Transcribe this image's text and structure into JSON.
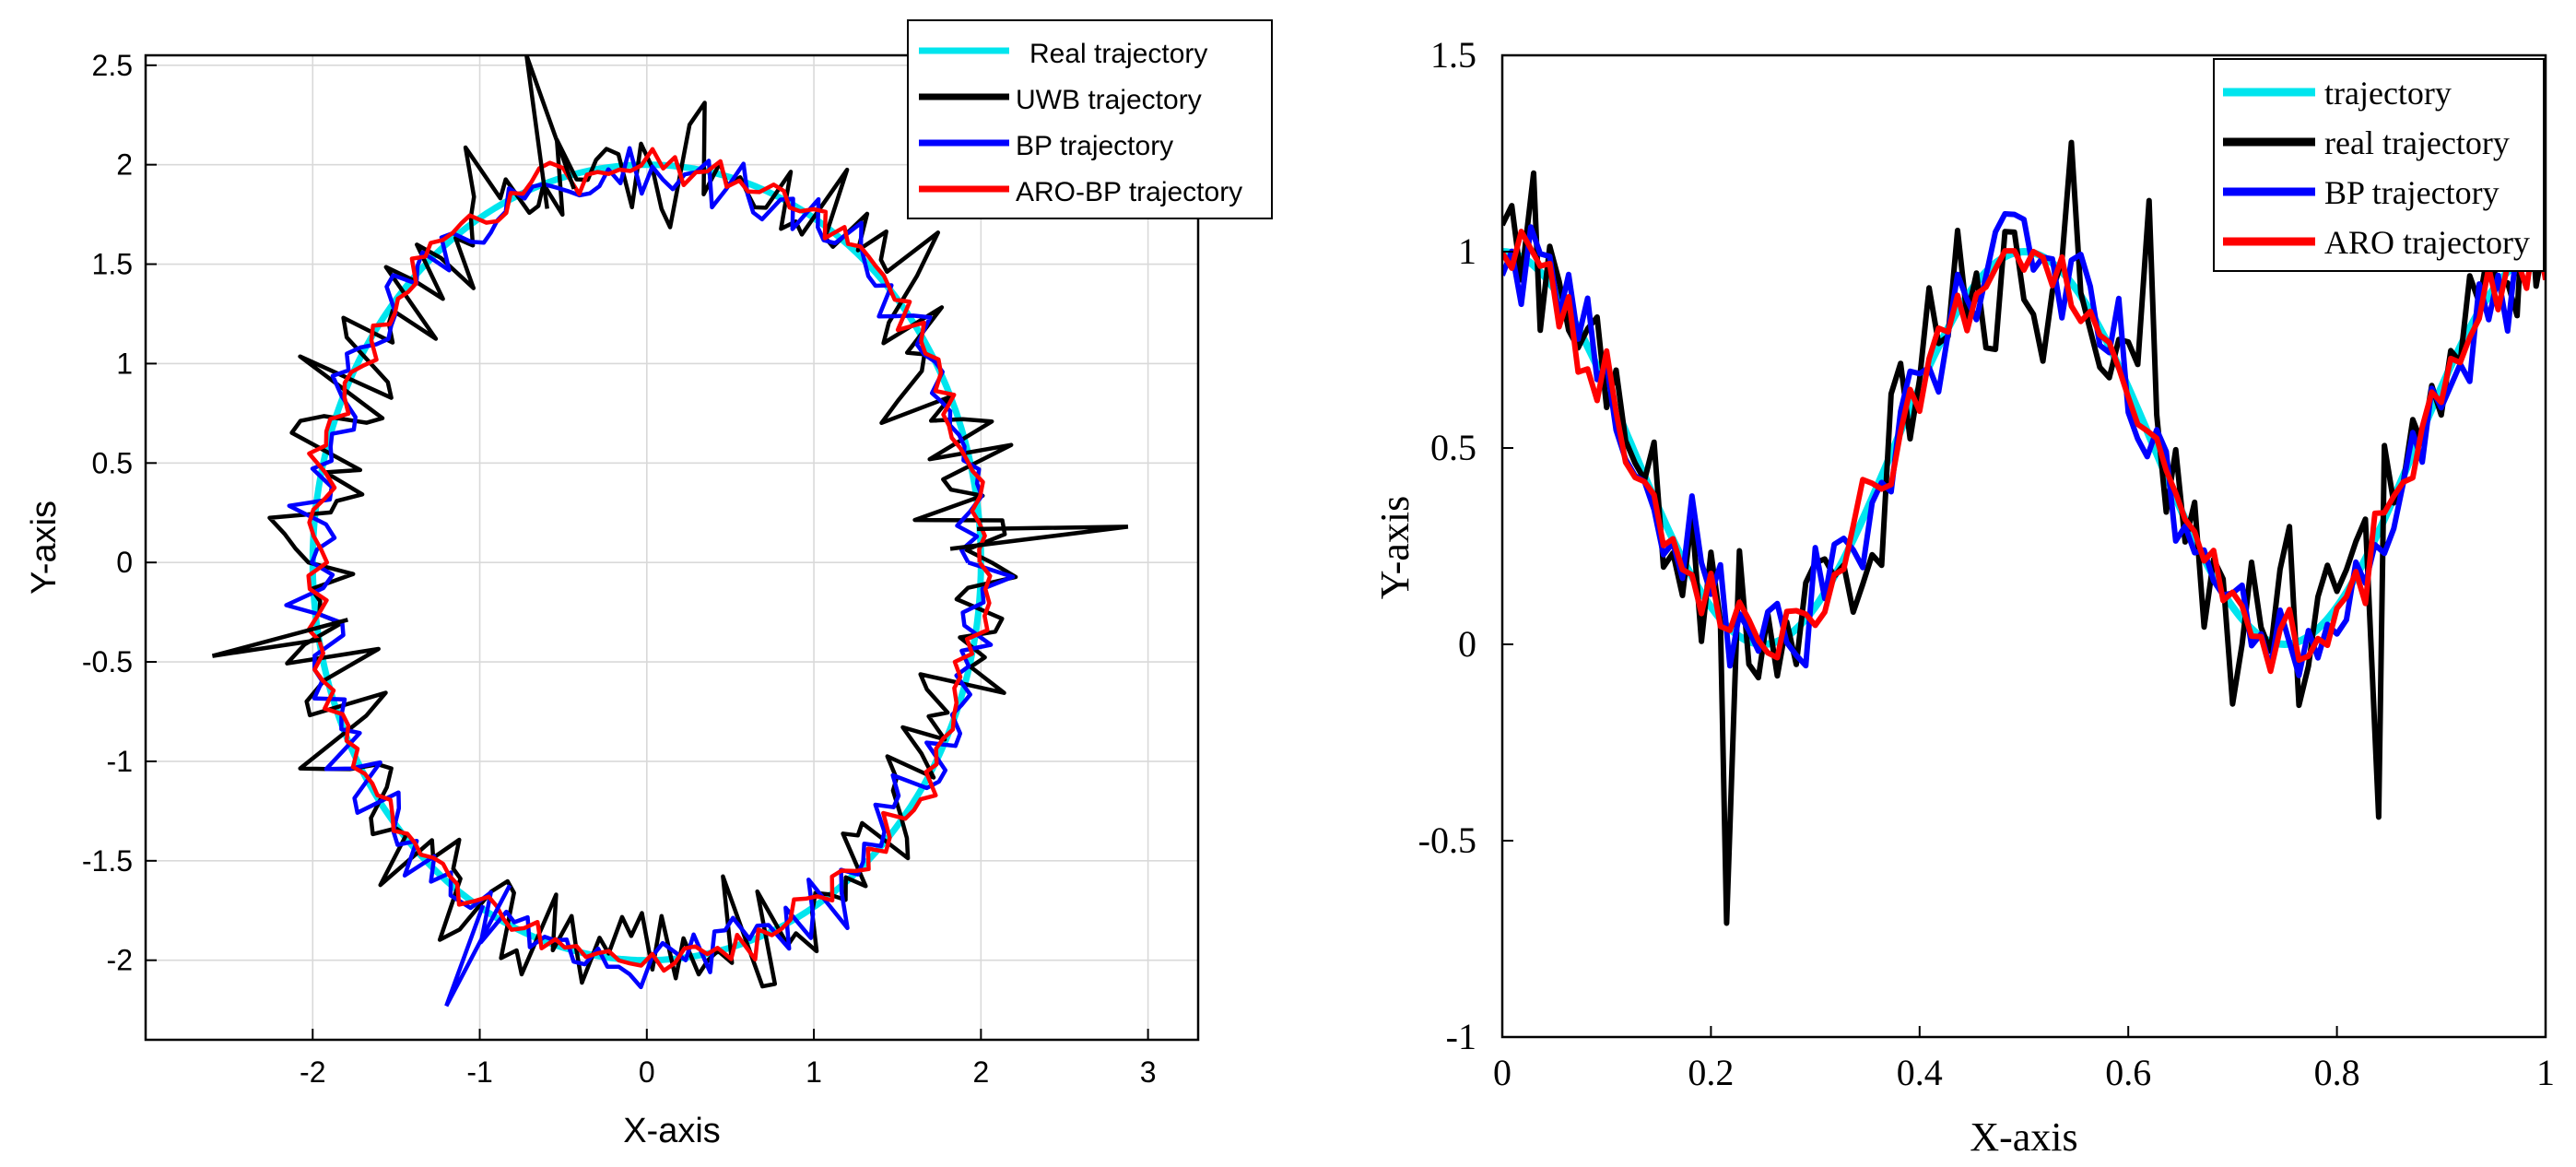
{
  "colors": {
    "cyan": "#00e5ee",
    "black": "#000000",
    "blue": "#0000ff",
    "red": "#ff0000"
  },
  "chart_data": [
    {
      "type": "line",
      "xlabel": "X-axis",
      "ylabel": "Y-axis",
      "xlim": [
        -3,
        3.3
      ],
      "ylim": [
        -2.4,
        2.55
      ],
      "xticks": [
        -2,
        -1,
        0,
        1,
        2,
        3
      ],
      "xtick_labels": [
        "-2",
        "-1",
        "0",
        "1",
        "2",
        "3"
      ],
      "yticks": [
        -2,
        -1.5,
        -1,
        -0.5,
        0,
        0.5,
        1,
        1.5,
        2,
        2.5
      ],
      "ytick_labels": [
        "-2",
        "-1.5",
        "-1",
        "-0.5",
        "0",
        "0.5",
        "1",
        "1.5",
        "2",
        "2.5"
      ],
      "grid": true,
      "legend_position": "top-right",
      "series": [
        {
          "name": "Real trajectory",
          "color": "#00e5ee",
          "description": "circle of radius 2 centred at origin",
          "radius": 2,
          "noise": 0
        },
        {
          "name": "UWB trajectory",
          "color": "#000000",
          "radius": 2,
          "noise": 0.28
        },
        {
          "name": "BP trajectory",
          "color": "#0000ff",
          "radius": 2,
          "noise": 0.14
        },
        {
          "name": "ARO-BP trajectory",
          "color": "#ff0000",
          "radius": 2,
          "noise": 0.07
        }
      ],
      "notable_points": [
        {
          "series": "UWB trajectory",
          "x": -2.6,
          "y": -0.47
        },
        {
          "series": "UWB trajectory",
          "x": 2.88,
          "y": 0.18
        },
        {
          "series": "UWB trajectory",
          "x": -0.72,
          "y": 2.55
        },
        {
          "series": "BP trajectory",
          "x": -1.2,
          "y": -2.23
        }
      ]
    },
    {
      "type": "line",
      "xlabel": "X-axis",
      "ylabel": "Y-axis",
      "xlim": [
        0,
        1
      ],
      "ylim": [
        -1,
        1.5
      ],
      "xticks": [
        0,
        0.2,
        0.4,
        0.6,
        0.8,
        1
      ],
      "xtick_labels": [
        "0",
        "0.2",
        "0.4",
        "0.6",
        "0.8",
        "1"
      ],
      "yticks": [
        -1,
        -0.5,
        0,
        0.5,
        1,
        1.5
      ],
      "ytick_labels": [
        "-1",
        "-0.5",
        "0",
        "0.5",
        "1",
        "1.5"
      ],
      "grid": false,
      "legend_position": "top-right",
      "base_function": "0.5 + 0.5*cos(4*pi*x)",
      "series": [
        {
          "name": "trajectory",
          "color": "#00e5ee",
          "noise": 0
        },
        {
          "name": "real trajectory",
          "color": "#000000",
          "noise": 0.22
        },
        {
          "name": "BP trajectory",
          "color": "#0000ff",
          "noise": 0.13
        },
        {
          "name": "ARO trajectory",
          "color": "#ff0000",
          "noise": 0.08
        }
      ],
      "notable_points": [
        {
          "series": "real trajectory",
          "x": 0.215,
          "y": -0.71
        },
        {
          "series": "real trajectory",
          "x": 0.62,
          "y": 1.13
        },
        {
          "series": "real trajectory",
          "x": 0.03,
          "y": 1.2
        },
        {
          "series": "real trajectory",
          "x": 0.84,
          "y": -0.44
        }
      ]
    }
  ]
}
